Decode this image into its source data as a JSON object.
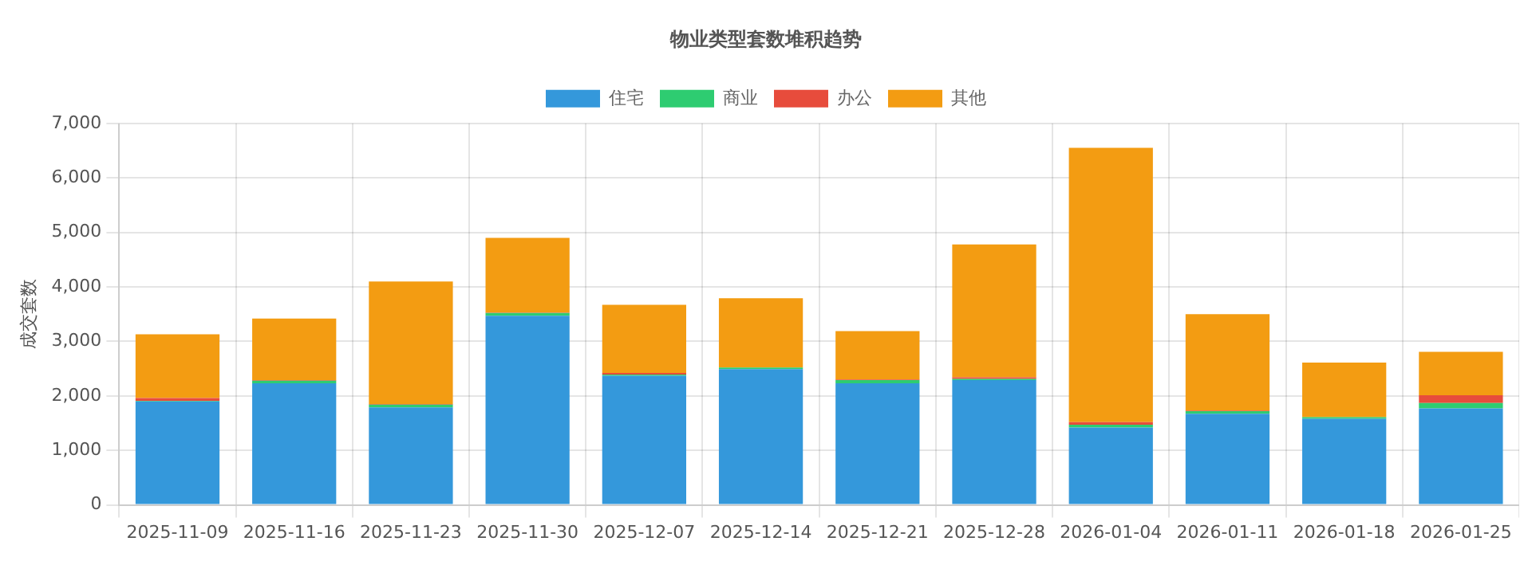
{
  "chart_data": {
    "type": "bar",
    "title": "物业类型套数堆积趋势",
    "ylabel": "成交套数",
    "stacked": true,
    "legend": "top",
    "grid": true,
    "categories": [
      "2025-11-09",
      "2025-11-16",
      "2025-11-23",
      "2025-11-30",
      "2025-12-07",
      "2025-12-14",
      "2025-12-21",
      "2025-12-28",
      "2026-01-04",
      "2026-01-11",
      "2026-01-18",
      "2026-01-25"
    ],
    "ylim": [
      0,
      7000
    ],
    "yticks": [
      {
        "value": 0,
        "label": "0"
      },
      {
        "value": 1000,
        "label": "1,000"
      },
      {
        "value": 2000,
        "label": "2,000"
      },
      {
        "value": 3000,
        "label": "3,000"
      },
      {
        "value": 4000,
        "label": "4,000"
      },
      {
        "value": 5000,
        "label": "5,000"
      },
      {
        "value": 6000,
        "label": "6,000"
      },
      {
        "value": 7000,
        "label": "7,000"
      }
    ],
    "series": [
      {
        "name": "住宅",
        "color": "#3498db",
        "values": [
          1900,
          2230,
          1790,
          3470,
          2370,
          2490,
          2230,
          2290,
          1420,
          1670,
          1580,
          1770
        ]
      },
      {
        "name": "商业",
        "color": "#2ecc71",
        "values": [
          10,
          50,
          50,
          50,
          20,
          30,
          60,
          20,
          50,
          50,
          30,
          100
        ]
      },
      {
        "name": "办公",
        "color": "#e74c3c",
        "values": [
          50,
          10,
          10,
          10,
          30,
          null,
          10,
          30,
          50,
          10,
          null,
          140
        ]
      },
      {
        "name": "其他",
        "color": "#f39c12",
        "values": [
          1170,
          1130,
          2250,
          1370,
          1250,
          1270,
          890,
          2440,
          5030,
          1770,
          1000,
          800
        ]
      }
    ]
  }
}
